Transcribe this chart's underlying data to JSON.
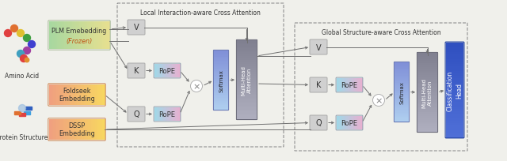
{
  "bg_color": "#f0f0eb",
  "local_box_title": "Local Interaction-aware Cross Attention",
  "global_box_title": "Global Structure-aware Cross Attention",
  "amino_acid_label": "Amino Acid",
  "protein_structure_label": "Protein Structure",
  "plm_label1": "PLM Emebedding",
  "plm_label2": "(Frozen)",
  "foldseek_label1": "Foldseek",
  "foldseek_label2": "Embedding",
  "dssp_label1": "DSSP",
  "dssp_label2": "Embedding",
  "v_label": "V",
  "k_label": "K",
  "q_label": "Q",
  "rope_label": "RoPE",
  "softmax_label": "Softmax",
  "mha_label": "Multi-Head\nAttention",
  "x_label": "×",
  "cls_label": "Classification\nHead",
  "plm_cl": "#a8d8a0",
  "plm_cr": "#e8e090",
  "foldseek_cl": "#f0a080",
  "foldseek_cr": "#f8d860",
  "dssp_cl": "#f0a080",
  "dssp_cr": "#f8d860",
  "rope_cl": "#a0d8e8",
  "rope_cr": "#e8b0d0",
  "vkq_fc": "#d0d0d0",
  "softmax_cl": "#8090d8",
  "softmax_cr": "#b0d0f0",
  "mha_fc": "#909090",
  "cls_cl": "#3050c0",
  "cls_cr": "#5070d8",
  "arrow_color": "#707070",
  "dashed_color": "#909090"
}
